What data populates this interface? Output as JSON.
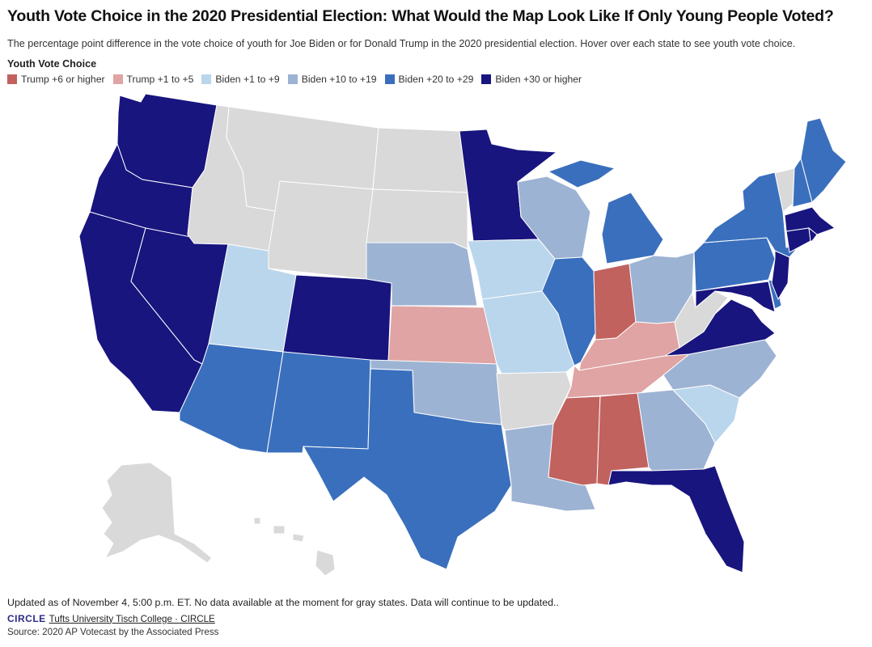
{
  "title": "Youth Vote Choice in the 2020 Presidential Election: What Would the Map Look Like If Only Young People Voted?",
  "subtitle": "The percentage point difference in the vote choice of youth for Joe Biden or for Donald Trump in the 2020 presidential election. Hover over each state to see youth vote choice.",
  "legend": {
    "title": "Youth Vote Choice",
    "items": [
      {
        "key": "t6",
        "label": "Trump +6 or higher",
        "color": "#c1625f"
      },
      {
        "key": "t1",
        "label": "Trump +1 to +5",
        "color": "#dfa4a3"
      },
      {
        "key": "b1",
        "label": "Biden +1 to +9",
        "color": "#bad6ec"
      },
      {
        "key": "b10",
        "label": "Biden +10 to +19",
        "color": "#9db3d3"
      },
      {
        "key": "b20",
        "label": "Biden +20 to +29",
        "color": "#3a6fbd"
      },
      {
        "key": "b30",
        "label": "Biden +30 or higher",
        "color": "#18157f"
      }
    ]
  },
  "no_data_color": "#d9d9d9",
  "states": {
    "WA": "b30",
    "OR": "b30",
    "CA": "b30",
    "NV": "b30",
    "ID": "none",
    "MT": "none",
    "WY": "none",
    "UT": "b1",
    "CO": "b30",
    "AZ": "b20",
    "NM": "b20",
    "ND": "none",
    "SD": "none",
    "NE": "b10",
    "KS": "t1",
    "OK": "b10",
    "TX": "b20",
    "MN": "b30",
    "IA": "b1",
    "MO": "b1",
    "AR": "none",
    "LA": "b10",
    "WI": "b10",
    "IL": "b20",
    "MI": "b20",
    "IN": "t6",
    "OH": "b10",
    "KY": "t1",
    "TN": "t1",
    "MS": "t6",
    "AL": "t6",
    "GA": "b10",
    "FL": "b30",
    "SC": "b1",
    "NC": "b10",
    "VA": "b30",
    "WV": "none",
    "MD": "b30",
    "DE": "b20",
    "NJ": "b30",
    "PA": "b20",
    "NY": "b20",
    "CT": "b30",
    "RI": "b30",
    "MA": "b30",
    "VT": "none",
    "NH": "b20",
    "ME": "b20",
    "AK": "none",
    "HI": "none"
  },
  "footer": {
    "note": "Updated as of November 4, 5:00 p.m. ET. No data available at the moment for gray states. Data will continue to be updated..",
    "logo_text": "CIRCLE",
    "credit_link": "Tufts University Tisch College · CIRCLE",
    "source": "Source: 2020 AP Votecast by the Associated Press"
  }
}
